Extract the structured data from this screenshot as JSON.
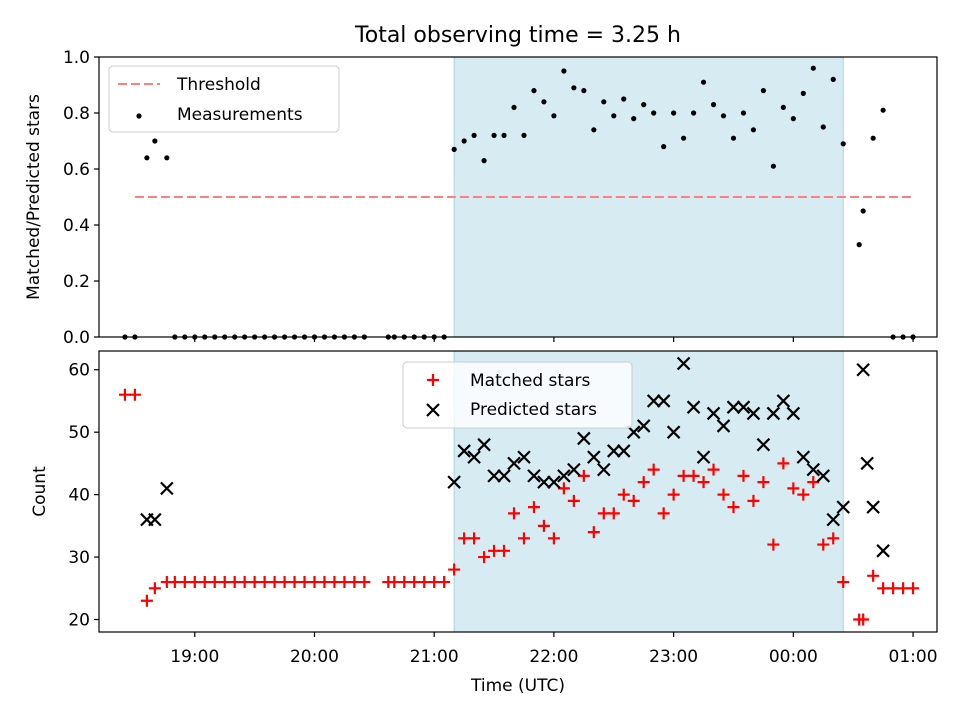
{
  "title": "Total observing time = 3.25 h",
  "xlabel": "Time (UTC)",
  "colors": {
    "threshold": "#ff7f7f",
    "measurement": "#000000",
    "matched": "#ff0000",
    "predicted": "#000000",
    "highlight": "#add8e6"
  },
  "chart_data": [
    {
      "type": "scatter",
      "ylabel": "Matched/Predicted stars",
      "xlim": [
        "18:12",
        "01:12"
      ],
      "ylim": [
        0,
        1.0
      ],
      "yticks": [
        "0.0",
        "0.2",
        "0.4",
        "0.6",
        "0.8",
        "1.0"
      ],
      "highlight_span": {
        "start": "21:10",
        "end": "00:25"
      },
      "legend": {
        "position": "upper-left",
        "entries": [
          "Threshold",
          "Measurements"
        ]
      },
      "threshold": {
        "name": "Threshold",
        "y": 0.5,
        "x_start": "18:30",
        "x_end": "00:59"
      },
      "series": [
        {
          "name": "Measurements",
          "points": [
            [
              "18:25",
              0
            ],
            [
              "18:30",
              0
            ],
            [
              "18:36",
              0.64
            ],
            [
              "18:40",
              0.7
            ],
            [
              "18:46",
              0.64
            ],
            [
              "18:50",
              0
            ],
            [
              "18:55",
              0
            ],
            [
              "19:00",
              0
            ],
            [
              "19:05",
              0
            ],
            [
              "19:10",
              0
            ],
            [
              "19:15",
              0
            ],
            [
              "19:20",
              0
            ],
            [
              "19:25",
              0
            ],
            [
              "19:30",
              0
            ],
            [
              "19:35",
              0
            ],
            [
              "19:40",
              0
            ],
            [
              "19:45",
              0
            ],
            [
              "19:50",
              0
            ],
            [
              "19:55",
              0
            ],
            [
              "20:00",
              0
            ],
            [
              "20:05",
              0
            ],
            [
              "20:10",
              0
            ],
            [
              "20:15",
              0
            ],
            [
              "20:20",
              0
            ],
            [
              "20:25",
              0
            ],
            [
              "20:37",
              0
            ],
            [
              "20:40",
              0
            ],
            [
              "20:45",
              0
            ],
            [
              "20:50",
              0
            ],
            [
              "20:55",
              0
            ],
            [
              "21:00",
              0
            ],
            [
              "21:05",
              0
            ],
            [
              "21:10",
              0.67
            ],
            [
              "21:15",
              0.7
            ],
            [
              "21:20",
              0.72
            ],
            [
              "21:25",
              0.63
            ],
            [
              "21:30",
              0.72
            ],
            [
              "21:35",
              0.72
            ],
            [
              "21:40",
              0.82
            ],
            [
              "21:45",
              0.72
            ],
            [
              "21:50",
              0.88
            ],
            [
              "21:55",
              0.84
            ],
            [
              "22:00",
              0.79
            ],
            [
              "22:05",
              0.95
            ],
            [
              "22:10",
              0.89
            ],
            [
              "22:15",
              0.88
            ],
            [
              "22:20",
              0.74
            ],
            [
              "22:25",
              0.84
            ],
            [
              "22:30",
              0.79
            ],
            [
              "22:35",
              0.85
            ],
            [
              "22:40",
              0.78
            ],
            [
              "22:45",
              0.83
            ],
            [
              "22:50",
              0.8
            ],
            [
              "22:55",
              0.68
            ],
            [
              "23:00",
              0.8
            ],
            [
              "23:05",
              0.71
            ],
            [
              "23:10",
              0.8
            ],
            [
              "23:15",
              0.91
            ],
            [
              "23:20",
              0.83
            ],
            [
              "23:25",
              0.79
            ],
            [
              "23:30",
              0.71
            ],
            [
              "23:35",
              0.8
            ],
            [
              "23:40",
              0.74
            ],
            [
              "23:45",
              0.88
            ],
            [
              "23:50",
              0.61
            ],
            [
              "23:55",
              0.82
            ],
            [
              "00:00",
              0.78
            ],
            [
              "00:05",
              0.87
            ],
            [
              "00:10",
              0.96
            ],
            [
              "00:15",
              0.75
            ],
            [
              "00:20",
              0.92
            ],
            [
              "00:25",
              0.69
            ],
            [
              "00:33",
              0.33
            ],
            [
              "00:35",
              0.45
            ],
            [
              "00:40",
              0.71
            ],
            [
              "00:45",
              0.81
            ],
            [
              "00:50",
              0
            ],
            [
              "00:55",
              0
            ],
            [
              "01:00",
              0
            ]
          ]
        }
      ]
    },
    {
      "type": "scatter",
      "ylabel": "Count",
      "xlim": [
        "18:12",
        "01:12"
      ],
      "ylim": [
        18,
        63
      ],
      "yticks": [
        "20",
        "30",
        "40",
        "50",
        "60"
      ],
      "xticks": [
        "19:00",
        "20:00",
        "21:00",
        "22:00",
        "23:00",
        "00:00",
        "01:00"
      ],
      "highlight_span": {
        "start": "21:10",
        "end": "00:25"
      },
      "legend": {
        "position": "upper-center",
        "entries": [
          "Matched stars",
          "Predicted stars"
        ]
      },
      "series": [
        {
          "name": "Matched stars",
          "marker": "plus",
          "points": [
            [
              "18:25",
              56
            ],
            [
              "18:30",
              56
            ],
            [
              "18:36",
              23
            ],
            [
              "18:40",
              25
            ],
            [
              "18:46",
              26
            ],
            [
              "18:50",
              26
            ],
            [
              "18:55",
              26
            ],
            [
              "19:00",
              26
            ],
            [
              "19:05",
              26
            ],
            [
              "19:10",
              26
            ],
            [
              "19:15",
              26
            ],
            [
              "19:20",
              26
            ],
            [
              "19:25",
              26
            ],
            [
              "19:30",
              26
            ],
            [
              "19:35",
              26
            ],
            [
              "19:40",
              26
            ],
            [
              "19:45",
              26
            ],
            [
              "19:50",
              26
            ],
            [
              "19:55",
              26
            ],
            [
              "20:00",
              26
            ],
            [
              "20:05",
              26
            ],
            [
              "20:10",
              26
            ],
            [
              "20:15",
              26
            ],
            [
              "20:20",
              26
            ],
            [
              "20:25",
              26
            ],
            [
              "20:37",
              26
            ],
            [
              "20:40",
              26
            ],
            [
              "20:45",
              26
            ],
            [
              "20:50",
              26
            ],
            [
              "20:55",
              26
            ],
            [
              "21:00",
              26
            ],
            [
              "21:05",
              26
            ],
            [
              "21:10",
              28
            ],
            [
              "21:15",
              33
            ],
            [
              "21:20",
              33
            ],
            [
              "21:25",
              30
            ],
            [
              "21:30",
              31
            ],
            [
              "21:35",
              31
            ],
            [
              "21:40",
              37
            ],
            [
              "21:45",
              33
            ],
            [
              "21:50",
              38
            ],
            [
              "21:55",
              35
            ],
            [
              "22:00",
              33
            ],
            [
              "22:05",
              41
            ],
            [
              "22:10",
              39
            ],
            [
              "22:15",
              43
            ],
            [
              "22:20",
              34
            ],
            [
              "22:25",
              37
            ],
            [
              "22:30",
              37
            ],
            [
              "22:35",
              40
            ],
            [
              "22:40",
              39
            ],
            [
              "22:45",
              42
            ],
            [
              "22:50",
              44
            ],
            [
              "22:55",
              37
            ],
            [
              "23:00",
              40
            ],
            [
              "23:05",
              43
            ],
            [
              "23:10",
              43
            ],
            [
              "23:15",
              42
            ],
            [
              "23:20",
              44
            ],
            [
              "23:25",
              40
            ],
            [
              "23:30",
              38
            ],
            [
              "23:35",
              43
            ],
            [
              "23:40",
              39
            ],
            [
              "23:45",
              42
            ],
            [
              "23:50",
              32
            ],
            [
              "23:55",
              45
            ],
            [
              "00:00",
              41
            ],
            [
              "00:05",
              40
            ],
            [
              "00:10",
              42
            ],
            [
              "00:15",
              32
            ],
            [
              "00:20",
              33
            ],
            [
              "00:25",
              26
            ],
            [
              "00:33",
              20
            ],
            [
              "00:35",
              20
            ],
            [
              "00:40",
              27
            ],
            [
              "00:45",
              25
            ],
            [
              "00:50",
              25
            ],
            [
              "00:55",
              25
            ],
            [
              "01:00",
              25
            ]
          ]
        },
        {
          "name": "Predicted stars",
          "marker": "x",
          "points": [
            [
              "18:36",
              36
            ],
            [
              "18:40",
              36
            ],
            [
              "18:46",
              41
            ],
            [
              "21:10",
              42
            ],
            [
              "21:15",
              47
            ],
            [
              "21:20",
              46
            ],
            [
              "21:25",
              48
            ],
            [
              "21:30",
              43
            ],
            [
              "21:35",
              43
            ],
            [
              "21:40",
              45
            ],
            [
              "21:45",
              46
            ],
            [
              "21:50",
              43
            ],
            [
              "21:55",
              42
            ],
            [
              "22:00",
              42
            ],
            [
              "22:05",
              43
            ],
            [
              "22:10",
              44
            ],
            [
              "22:15",
              49
            ],
            [
              "22:20",
              46
            ],
            [
              "22:25",
              44
            ],
            [
              "22:30",
              47
            ],
            [
              "22:35",
              47
            ],
            [
              "22:40",
              50
            ],
            [
              "22:45",
              51
            ],
            [
              "22:50",
              55
            ],
            [
              "22:55",
              55
            ],
            [
              "23:00",
              50
            ],
            [
              "23:05",
              61
            ],
            [
              "23:10",
              54
            ],
            [
              "23:15",
              46
            ],
            [
              "23:20",
              53
            ],
            [
              "23:25",
              51
            ],
            [
              "23:30",
              54
            ],
            [
              "23:35",
              54
            ],
            [
              "23:40",
              53
            ],
            [
              "23:45",
              48
            ],
            [
              "23:50",
              53
            ],
            [
              "23:55",
              55
            ],
            [
              "00:00",
              53
            ],
            [
              "00:05",
              46
            ],
            [
              "00:10",
              44
            ],
            [
              "00:15",
              43
            ],
            [
              "00:20",
              36
            ],
            [
              "00:25",
              38
            ],
            [
              "00:35",
              60
            ],
            [
              "00:37",
              45
            ],
            [
              "00:40",
              38
            ],
            [
              "00:45",
              31
            ]
          ]
        }
      ]
    }
  ]
}
